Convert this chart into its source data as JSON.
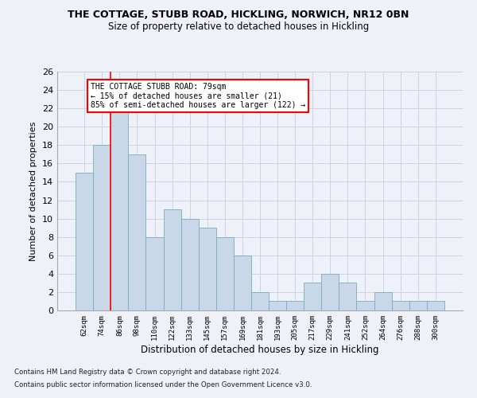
{
  "title1": "THE COTTAGE, STUBB ROAD, HICKLING, NORWICH, NR12 0BN",
  "title2": "Size of property relative to detached houses in Hickling",
  "xlabel": "Distribution of detached houses by size in Hickling",
  "ylabel": "Number of detached properties",
  "bar_labels": [
    "62sqm",
    "74sqm",
    "86sqm",
    "98sqm",
    "110sqm",
    "122sqm",
    "133sqm",
    "145sqm",
    "157sqm",
    "169sqm",
    "181sqm",
    "193sqm",
    "205sqm",
    "217sqm",
    "229sqm",
    "241sqm",
    "252sqm",
    "264sqm",
    "276sqm",
    "288sqm",
    "300sqm"
  ],
  "bar_values": [
    15,
    18,
    22,
    17,
    8,
    11,
    10,
    9,
    8,
    6,
    2,
    1,
    1,
    3,
    4,
    3,
    1,
    2,
    1,
    1,
    1
  ],
  "bar_color": "#c8d8e8",
  "bar_edge_color": "#7aaabf",
  "vline_color": "red",
  "vline_x": 1.5,
  "annotation_text": "THE COTTAGE STUBB ROAD: 79sqm\n← 15% of detached houses are smaller (21)\n85% of semi-detached houses are larger (122) →",
  "annotation_box_color": "white",
  "annotation_box_edge": "red",
  "ylim": [
    0,
    26
  ],
  "yticks": [
    0,
    2,
    4,
    6,
    8,
    10,
    12,
    14,
    16,
    18,
    20,
    22,
    24,
    26
  ],
  "grid_color": "#c8d4e8",
  "footer1": "Contains HM Land Registry data © Crown copyright and database right 2024.",
  "footer2": "Contains public sector information licensed under the Open Government Licence v3.0.",
  "bg_color": "#eef2f8"
}
